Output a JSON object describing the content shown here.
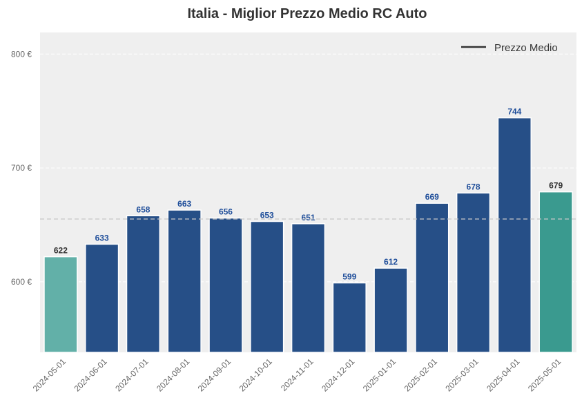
{
  "chart_data": {
    "type": "bar",
    "title": "Italia - Miglior Prezzo Medio RC Auto",
    "xlabel": "",
    "ylabel": "",
    "categories": [
      "2024-05-01",
      "2024-06-01",
      "2024-07-01",
      "2024-08-01",
      "2024-09-01",
      "2024-10-01",
      "2024-11-01",
      "2024-12-01",
      "2025-01-01",
      "2025-02-01",
      "2025-03-01",
      "2025-04-01",
      "2025-05-01"
    ],
    "values": [
      622,
      633,
      658,
      663,
      656,
      653,
      651,
      599,
      612,
      669,
      678,
      744,
      679
    ],
    "bar_colors": [
      "#62b0a8",
      "#264f87",
      "#264f87",
      "#264f87",
      "#264f87",
      "#264f87",
      "#264f87",
      "#264f87",
      "#264f87",
      "#264f87",
      "#264f87",
      "#264f87",
      "#3a9a8f"
    ],
    "label_colors": [
      "#333333",
      "#1f4e9a",
      "#1f4e9a",
      "#1f4e9a",
      "#1f4e9a",
      "#1f4e9a",
      "#1f4e9a",
      "#1f4e9a",
      "#1f4e9a",
      "#1f4e9a",
      "#1f4e9a",
      "#1f4e9a",
      "#333333"
    ],
    "yticks": [
      600,
      700,
      800
    ],
    "ytick_labels": [
      "600 €",
      "700 €",
      "800 €"
    ],
    "ylim": [
      538,
      819
    ],
    "mean_line": 655.15,
    "legend": {
      "label": "Prezzo Medio",
      "placement": "top-right"
    },
    "grid": true
  }
}
